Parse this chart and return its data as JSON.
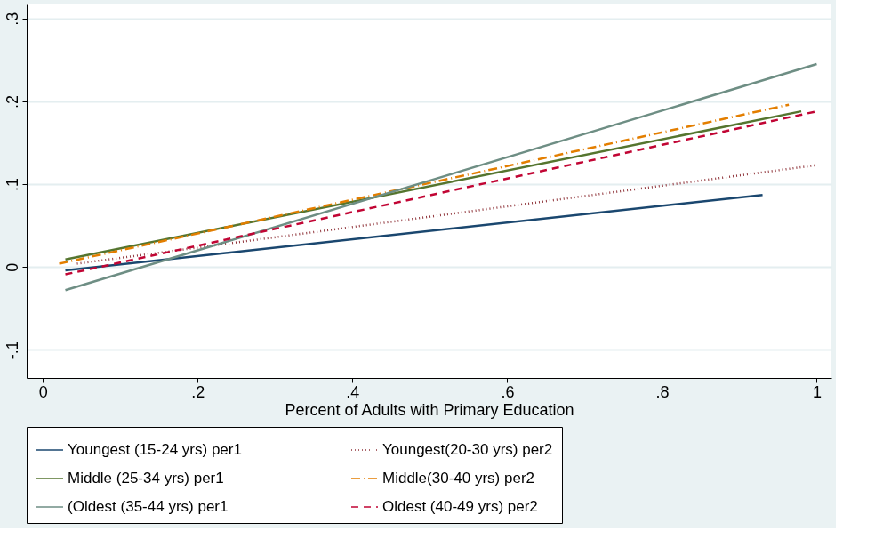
{
  "chart_data": {
    "type": "line",
    "xlabel": "Percent of Adults with Primary Education",
    "xlim": [
      -0.021,
      1.019
    ],
    "ylim": [
      -0.134,
      0.317
    ],
    "xticks": [
      0,
      {
        "value": 0.2,
        "label": ".2"
      },
      {
        "value": 0.4,
        "label": ".4"
      },
      {
        "value": 0.6,
        "label": ".6"
      },
      {
        "value": 0.8,
        "label": ".8"
      },
      1
    ],
    "yticks": [
      {
        "value": -0.1,
        "label": "-.1"
      },
      0,
      {
        "value": 0.1,
        "label": ".1"
      },
      {
        "value": 0.2,
        "label": ".2"
      },
      {
        "value": 0.3,
        "label": ".3"
      }
    ],
    "grid": "y",
    "legend": "bottom",
    "marker": "none",
    "series": [
      {
        "name": "Youngest (15-24 yrs) per1",
        "color": "#1a476f",
        "line_style": "solid",
        "x": [
          0.029,
          0.93
        ],
        "values": [
          -0.004,
          0.087
        ]
      },
      {
        "name": "Youngest(20-30 yrs) per2",
        "color": "#90353b",
        "line_style": "dotted",
        "x": [
          0.044,
          1.0
        ],
        "values": [
          0.004,
          0.123
        ]
      },
      {
        "name": "Middle (25-34 yrs) per1",
        "color": "#55752f",
        "line_style": "solid",
        "x": [
          0.029,
          0.98
        ],
        "values": [
          0.009,
          0.188
        ]
      },
      {
        "name": " Middle(30-40 yrs) per2",
        "color": "#e37e00",
        "line_style": "dashdot",
        "x": [
          0.021,
          0.964
        ],
        "values": [
          0.004,
          0.196
        ]
      },
      {
        "name": "(Oldest (35-44 yrs) per1",
        "color": "#6e8e84",
        "line_style": "solid",
        "x": [
          0.029,
          1.0
        ],
        "values": [
          -0.028,
          0.245
        ]
      },
      {
        "name": "Oldest (40-49 yrs) per2",
        "color": "#c10534",
        "line_style": "dashed",
        "x": [
          0.029,
          1.0
        ],
        "values": [
          -0.009,
          0.188
        ]
      }
    ]
  }
}
